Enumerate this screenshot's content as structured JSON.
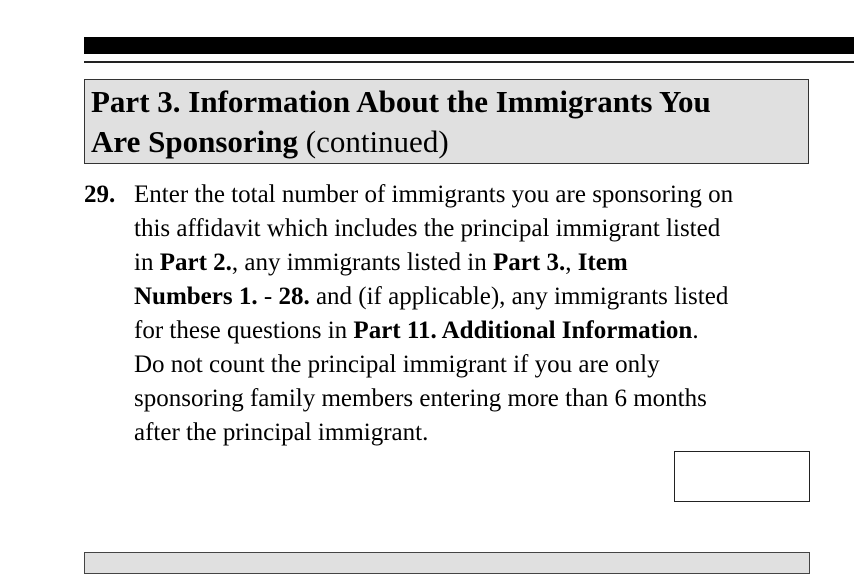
{
  "header": {
    "title_line1": "Part 3.  Information About the Immigrants You",
    "title_line2_bold": "Are Sponsoring",
    "title_line2_normal": " (continued)"
  },
  "question": {
    "number": "29.",
    "lines": [
      [
        {
          "t": "Enter the total number of immigrants you are sponsoring on",
          "b": false
        }
      ],
      [
        {
          "t": "this affidavit which includes the principal immigrant listed",
          "b": false
        }
      ],
      [
        {
          "t": "in ",
          "b": false
        },
        {
          "t": "Part 2.",
          "b": true
        },
        {
          "t": ", any immigrants listed in ",
          "b": false
        },
        {
          "t": "Part 3.",
          "b": true
        },
        {
          "t": ", ",
          "b": false
        },
        {
          "t": "Item",
          "b": true
        }
      ],
      [
        {
          "t": "Numbers 1.",
          "b": true
        },
        {
          "t": " - ",
          "b": false
        },
        {
          "t": "28.",
          "b": true
        },
        {
          "t": " and (if applicable), any immigrants listed",
          "b": false
        }
      ],
      [
        {
          "t": "for these questions in ",
          "b": false
        },
        {
          "t": "Part 11. Additional Information",
          "b": true
        },
        {
          "t": ".",
          "b": false
        }
      ],
      [
        {
          "t": "Do not count the principal immigrant if you are only",
          "b": false
        }
      ],
      [
        {
          "t": "sponsoring family members entering more than 6 months",
          "b": false
        }
      ],
      [
        {
          "t": "after the principal immigrant.",
          "b": false
        }
      ]
    ],
    "answer_value": ""
  }
}
